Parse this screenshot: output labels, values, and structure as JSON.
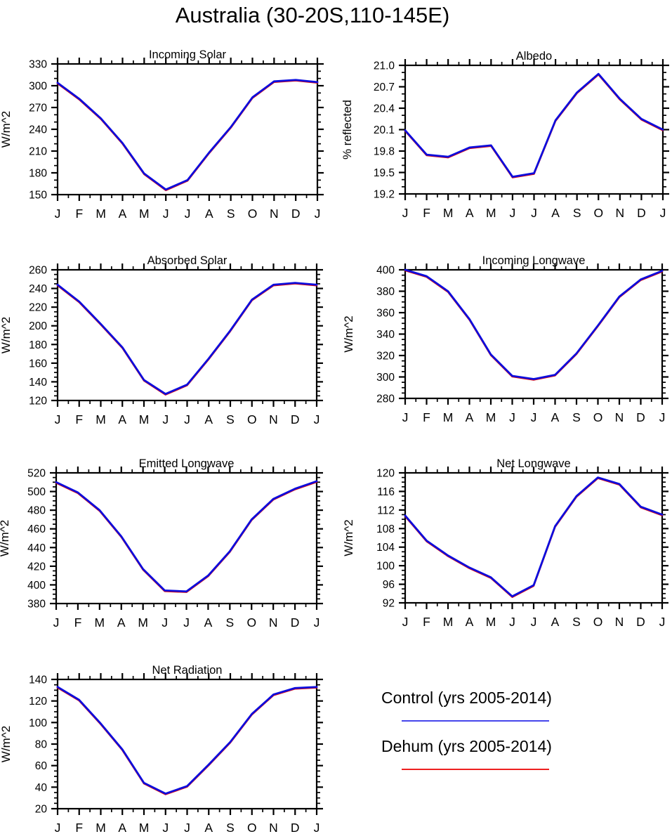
{
  "figure": {
    "title": "Australia (30-20S,110-145E)"
  },
  "legend": {
    "items": [
      {
        "label": "Control (yrs 2005-2014)",
        "series": "Control",
        "color": "#4646ec"
      },
      {
        "label": "Dehum (yrs 2005-2014)",
        "series": "Dehum",
        "color": "#ee2020"
      }
    ]
  },
  "colors": {
    "control_line": "#0d0ddd",
    "dehum_line": "#e60000",
    "axis": "#000000"
  },
  "chart_data": [
    {
      "type": "line",
      "title": "Incoming Solar",
      "ylabel": "W/m^2",
      "grid": false,
      "x_categories": [
        "J",
        "F",
        "M",
        "A",
        "M",
        "J",
        "J",
        "A",
        "S",
        "O",
        "N",
        "D",
        "J"
      ],
      "ylim": [
        150,
        330
      ],
      "ytick_step": 30,
      "yminor_step": 10,
      "series": [
        {
          "name": "Control",
          "color": "#0d0ddd",
          "values": [
            304,
            282,
            255,
            221,
            179,
            157,
            170,
            208,
            243,
            284,
            306,
            308,
            305
          ]
        },
        {
          "name": "Dehum",
          "color": "#e60000",
          "values": [
            304,
            282,
            255,
            221,
            179,
            157,
            170,
            208,
            243,
            284,
            306,
            308,
            305
          ]
        }
      ]
    },
    {
      "type": "line",
      "title": "Albedo",
      "ylabel": "% reflected",
      "grid": false,
      "x_categories": [
        "J",
        "F",
        "M",
        "A",
        "M",
        "J",
        "J",
        "A",
        "S",
        "O",
        "N",
        "D",
        "J"
      ],
      "ylim": [
        19.2,
        21.0
      ],
      "ytick_step": 0.3,
      "yminor_step": 0.1,
      "series": [
        {
          "name": "Control",
          "color": "#0d0ddd",
          "values": [
            20.09,
            19.75,
            19.72,
            19.85,
            19.88,
            19.44,
            19.49,
            20.23,
            20.62,
            20.88,
            20.53,
            20.25,
            20.1
          ]
        },
        {
          "name": "Dehum",
          "color": "#e60000",
          "values": [
            20.09,
            19.75,
            19.72,
            19.85,
            19.88,
            19.44,
            19.49,
            20.23,
            20.62,
            20.88,
            20.53,
            20.25,
            20.1
          ]
        }
      ]
    },
    {
      "type": "line",
      "title": "Absorbed Solar",
      "ylabel": "W/m^2",
      "grid": false,
      "x_categories": [
        "J",
        "F",
        "M",
        "A",
        "M",
        "J",
        "J",
        "A",
        "S",
        "O",
        "N",
        "D",
        "J"
      ],
      "ylim": [
        120,
        260
      ],
      "ytick_step": 20,
      "yminor_step": 5,
      "series": [
        {
          "name": "Control",
          "color": "#0d0ddd",
          "values": [
            244,
            226,
            202,
            177,
            142,
            127,
            137,
            165,
            195,
            228,
            244,
            246,
            244
          ]
        },
        {
          "name": "Dehum",
          "color": "#e60000",
          "values": [
            244,
            226,
            202,
            177,
            142,
            127,
            137,
            165,
            195,
            228,
            244,
            246,
            244
          ]
        }
      ]
    },
    {
      "type": "line",
      "title": "Incoming Longwave",
      "ylabel": "W/m^2",
      "grid": false,
      "x_categories": [
        "J",
        "F",
        "M",
        "A",
        "M",
        "J",
        "J",
        "A",
        "S",
        "O",
        "N",
        "D",
        "J"
      ],
      "ylim": [
        280,
        400
      ],
      "ytick_step": 20,
      "yminor_step": 5,
      "series": [
        {
          "name": "Control",
          "color": "#0d0ddd",
          "values": [
            400,
            394,
            380,
            354,
            321,
            301,
            298,
            302,
            322,
            348,
            375,
            391,
            399
          ]
        },
        {
          "name": "Dehum",
          "color": "#e60000",
          "values": [
            400,
            394,
            380,
            354,
            321,
            301,
            298,
            302,
            322,
            348,
            375,
            391,
            399
          ]
        }
      ]
    },
    {
      "type": "line",
      "title": "Emitted Longwave",
      "ylabel": "W/m^2",
      "grid": false,
      "x_categories": [
        "J",
        "F",
        "M",
        "A",
        "M",
        "J",
        "J",
        "A",
        "S",
        "O",
        "N",
        "D",
        "J"
      ],
      "ylim": [
        380,
        520
      ],
      "ytick_step": 20,
      "yminor_step": 5,
      "series": [
        {
          "name": "Control",
          "color": "#0d0ddd",
          "values": [
            510,
            499,
            480,
            452,
            417,
            394,
            393,
            410,
            436,
            470,
            492,
            503,
            511
          ]
        },
        {
          "name": "Dehum",
          "color": "#e60000",
          "values": [
            510,
            499,
            480,
            452,
            417,
            394,
            393,
            410,
            436,
            470,
            492,
            503,
            511
          ]
        }
      ]
    },
    {
      "type": "line",
      "title": "Net Longwave",
      "ylabel": "W/m^2",
      "grid": false,
      "x_categories": [
        "J",
        "F",
        "M",
        "A",
        "M",
        "J",
        "J",
        "A",
        "S",
        "O",
        "N",
        "D",
        "J"
      ],
      "ylim": [
        92,
        120
      ],
      "ytick_step": 4,
      "yminor_step": 1,
      "series": [
        {
          "name": "Control",
          "color": "#0d0ddd",
          "values": [
            110.8,
            105.4,
            102.2,
            99.6,
            97.5,
            93.4,
            95.8,
            108.5,
            115.0,
            119.0,
            117.6,
            112.7,
            111.0
          ]
        },
        {
          "name": "Dehum",
          "color": "#e60000",
          "values": [
            110.8,
            105.4,
            102.2,
            99.6,
            97.5,
            93.4,
            95.8,
            108.5,
            115.0,
            119.0,
            117.6,
            112.7,
            111.0
          ]
        }
      ]
    },
    {
      "type": "line",
      "title": "Net Radiation",
      "ylabel": "W/m^2",
      "grid": false,
      "x_categories": [
        "J",
        "F",
        "M",
        "A",
        "M",
        "J",
        "J",
        "A",
        "S",
        "O",
        "N",
        "D",
        "J"
      ],
      "ylim": [
        20,
        140
      ],
      "ytick_step": 20,
      "yminor_step": 5,
      "series": [
        {
          "name": "Control",
          "color": "#0d0ddd",
          "values": [
            133,
            121,
            99,
            75,
            44,
            34,
            41,
            61,
            82,
            108,
            126,
            132,
            133
          ]
        },
        {
          "name": "Dehum",
          "color": "#e60000",
          "values": [
            133,
            121,
            99,
            75,
            44,
            34,
            41,
            61,
            82,
            108,
            126,
            132,
            133
          ]
        }
      ]
    }
  ]
}
